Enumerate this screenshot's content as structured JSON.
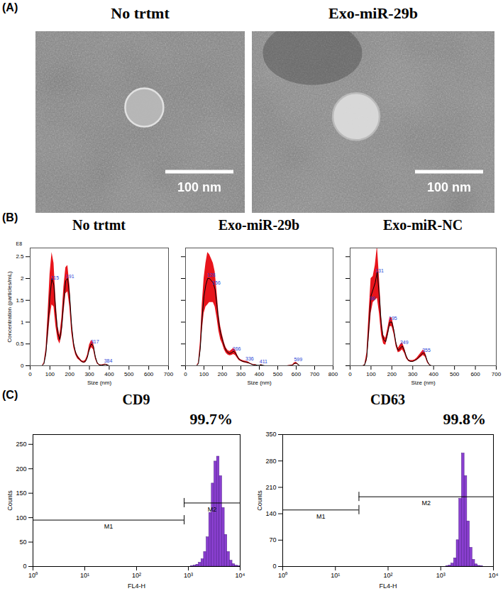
{
  "panel_labels": [
    "(A)",
    "(B)",
    "(C)"
  ],
  "panel_a": {
    "images": [
      {
        "title": "No trtmt",
        "scale_bar": "100 nm"
      },
      {
        "title": "Exo-miR-29b",
        "scale_bar": "100 nm"
      }
    ]
  },
  "chart_data": [
    {
      "type": "line",
      "title": "No trtmt",
      "xlabel": "Size (nm)",
      "ylabel": "Concentration (particles/mL)",
      "y_multiplier": "E8",
      "color": "#000000",
      "x": [
        0,
        50,
        60,
        70,
        80,
        90,
        100,
        110,
        120,
        130,
        140,
        150,
        160,
        170,
        180,
        190,
        200,
        210,
        220,
        230,
        240,
        250,
        260,
        270,
        280,
        290,
        300,
        310,
        320,
        330,
        340,
        350,
        360,
        370,
        380,
        390,
        400,
        450,
        500,
        600,
        700
      ],
      "values": [
        0,
        0,
        0,
        0.05,
        0.3,
        0.9,
        1.6,
        2.0,
        1.85,
        1.2,
        0.75,
        0.6,
        0.9,
        1.5,
        1.95,
        2.0,
        1.6,
        0.9,
        0.5,
        0.3,
        0.2,
        0.15,
        0.1,
        0.08,
        0.1,
        0.2,
        0.4,
        0.5,
        0.45,
        0.2,
        0.06,
        0.02,
        0.01,
        0.02,
        0.03,
        0.02,
        0,
        0,
        0,
        0,
        0
      ],
      "error": [
        0,
        0,
        0,
        0.02,
        0.1,
        0.3,
        0.5,
        0.6,
        0.5,
        0.3,
        0.15,
        0.1,
        0.2,
        0.3,
        0.3,
        0.3,
        0.25,
        0.15,
        0.08,
        0.05,
        0.04,
        0.03,
        0.02,
        0.02,
        0.03,
        0.05,
        0.08,
        0.08,
        0.08,
        0.05,
        0.02,
        0.01,
        0.01,
        0.01,
        0.01,
        0.01,
        0,
        0,
        0,
        0,
        0
      ],
      "peaks": [
        115,
        191,
        317,
        384
      ],
      "xlim": [
        0,
        700
      ],
      "xticks": [
        0,
        100,
        200,
        300,
        400,
        500,
        600,
        700
      ],
      "ylim": [
        0,
        2.7
      ],
      "yticks": [
        0,
        0.5,
        1,
        1.5,
        2,
        2.5
      ]
    },
    {
      "type": "line",
      "title": "Exo-miR-29b",
      "xlabel": "Size (nm)",
      "color": "#000000",
      "tick_labels": "x",
      "x": [
        0,
        50,
        60,
        70,
        80,
        90,
        100,
        110,
        120,
        130,
        140,
        150,
        160,
        170,
        180,
        190,
        200,
        210,
        220,
        230,
        240,
        250,
        260,
        270,
        280,
        290,
        300,
        310,
        320,
        330,
        340,
        350,
        360,
        370,
        380,
        390,
        400,
        410,
        420,
        430,
        440,
        450,
        500,
        550,
        580,
        590,
        600,
        610,
        620,
        650,
        700,
        800
      ],
      "values": [
        0,
        0,
        0,
        0.05,
        0.4,
        1.1,
        1.6,
        1.85,
        2.0,
        2.0,
        1.95,
        1.9,
        1.75,
        1.4,
        1.0,
        0.75,
        0.6,
        0.45,
        0.35,
        0.3,
        0.28,
        0.3,
        0.33,
        0.3,
        0.22,
        0.15,
        0.12,
        0.1,
        0.09,
        0.08,
        0.07,
        0.05,
        0.03,
        0.02,
        0.02,
        0.01,
        0.01,
        0.02,
        0.01,
        0,
        0,
        0,
        0,
        0,
        0.01,
        0.05,
        0.06,
        0.03,
        0,
        0,
        0,
        0
      ],
      "error": [
        0,
        0,
        0,
        0.02,
        0.15,
        0.3,
        0.4,
        0.5,
        0.6,
        0.55,
        0.5,
        0.45,
        0.4,
        0.3,
        0.2,
        0.15,
        0.1,
        0.08,
        0.06,
        0.05,
        0.05,
        0.06,
        0.07,
        0.06,
        0.04,
        0.03,
        0.02,
        0.02,
        0.02,
        0.02,
        0.02,
        0.01,
        0.01,
        0.01,
        0.01,
        0,
        0,
        0.01,
        0,
        0,
        0,
        0,
        0,
        0,
        0.01,
        0.02,
        0.02,
        0.01,
        0,
        0,
        0,
        0
      ],
      "peaks": [
        128,
        156,
        266,
        336,
        411,
        599
      ],
      "xlim": [
        0,
        800
      ],
      "xticks": [
        0,
        100,
        200,
        300,
        400,
        500,
        600,
        700,
        800
      ],
      "ylim": [
        0,
        2.7
      ],
      "yticks": [
        0,
        0.5,
        1,
        1.5,
        2,
        2.5
      ]
    },
    {
      "type": "line",
      "title": "Exo-miR-NC",
      "xlabel": "Size (nm)",
      "color": "#000000",
      "tick_labels": "x",
      "x": [
        0,
        50,
        60,
        70,
        80,
        90,
        100,
        110,
        120,
        130,
        140,
        150,
        160,
        170,
        180,
        190,
        200,
        210,
        220,
        230,
        240,
        250,
        260,
        270,
        280,
        290,
        300,
        310,
        320,
        330,
        340,
        350,
        360,
        370,
        380,
        390,
        400,
        450,
        500,
        600,
        700
      ],
      "values": [
        0,
        0,
        0,
        0.02,
        0.2,
        0.9,
        1.6,
        1.75,
        1.9,
        2.15,
        1.6,
        0.9,
        0.6,
        0.55,
        0.75,
        1.0,
        1.0,
        0.8,
        0.5,
        0.35,
        0.4,
        0.45,
        0.35,
        0.2,
        0.12,
        0.1,
        0.1,
        0.12,
        0.15,
        0.2,
        0.25,
        0.3,
        0.25,
        0.1,
        0.02,
        0,
        0,
        0,
        0,
        0,
        0
      ],
      "error": [
        0,
        0,
        0,
        0.01,
        0.1,
        0.3,
        0.4,
        0.3,
        0.4,
        0.6,
        0.4,
        0.2,
        0.1,
        0.08,
        0.1,
        0.1,
        0.1,
        0.08,
        0.06,
        0.05,
        0.08,
        0.08,
        0.06,
        0.04,
        0.02,
        0.02,
        0.02,
        0.02,
        0.03,
        0.04,
        0.05,
        0.06,
        0.05,
        0.03,
        0.01,
        0,
        0,
        0,
        0,
        0,
        0
      ],
      "peaks": [
        98,
        131,
        195,
        249,
        355
      ],
      "xlim": [
        0,
        700
      ],
      "xticks": [
        0,
        100,
        200,
        300,
        400,
        500,
        600,
        700
      ],
      "ylim": [
        0,
        2.7
      ],
      "yticks": [
        0,
        0.5,
        1,
        1.5,
        2,
        2.5
      ]
    },
    {
      "type": "histogram",
      "title": "CD9",
      "annotation": "99.7%",
      "xlabel": "FL4-H",
      "ylabel": "Counts",
      "log": "x",
      "color": "#8a3fd0",
      "bins": [
        708,
        794,
        891,
        1000,
        1122,
        1259,
        1413,
        1585,
        1778,
        1995,
        2239,
        2512,
        2818,
        3162,
        3548,
        3981,
        4467,
        5012,
        5623,
        6310,
        7079,
        7943,
        8913,
        10000
      ],
      "counts": [
        0,
        0,
        0,
        0,
        1,
        2,
        4,
        8,
        15,
        30,
        60,
        110,
        170,
        215,
        225,
        185,
        120,
        65,
        30,
        12,
        5,
        2,
        1
      ],
      "gates": [
        {
          "name": "M1",
          "range": [
            1,
            830
          ],
          "y": 95
        },
        {
          "name": "M2",
          "range": [
            830,
            10000
          ],
          "y": 130
        }
      ],
      "xlim": [
        1,
        10000
      ],
      "xticks": [
        {
          "value": 1,
          "label": "10⁰"
        },
        {
          "value": 10,
          "label": "10¹"
        },
        {
          "value": 100,
          "label": "10²"
        },
        {
          "value": 1000,
          "label": "10³"
        },
        {
          "value": 10000,
          "label": "10⁴"
        }
      ],
      "ylim": [
        0,
        270
      ],
      "yticks": [
        0,
        50,
        100,
        150,
        200,
        250
      ]
    },
    {
      "type": "histogram",
      "title": "CD63",
      "annotation": "99.8%",
      "xlabel": "FL4-H",
      "ylabel": "Counts",
      "log": "x",
      "color": "#8a3fd0",
      "bins": [
        708,
        794,
        891,
        1000,
        1122,
        1259,
        1413,
        1585,
        1778,
        1995,
        2239,
        2512,
        2818,
        3162,
        3548,
        3981,
        4467,
        5012,
        5623,
        6310,
        7079,
        7943,
        8913,
        10000
      ],
      "counts": [
        0,
        0,
        0,
        0,
        0,
        1,
        3,
        8,
        22,
        70,
        180,
        300,
        240,
        120,
        50,
        18,
        6,
        2,
        1,
        0,
        0,
        0,
        0
      ],
      "gates": [
        {
          "name": "M1",
          "range": [
            1,
            28
          ],
          "y": 150
        },
        {
          "name": "M2",
          "range": [
            28,
            10000
          ],
          "y": 185
        }
      ],
      "xlim": [
        1,
        10000
      ],
      "xticks": [
        {
          "value": 1,
          "label": "10⁰"
        },
        {
          "value": 10,
          "label": "10¹"
        },
        {
          "value": 100,
          "label": "10²"
        },
        {
          "value": 1000,
          "label": "10³"
        },
        {
          "value": 10000,
          "label": "10⁴"
        }
      ],
      "ylim": [
        0,
        350
      ],
      "yticks": [
        0,
        70,
        140,
        210,
        280,
        350
      ]
    }
  ]
}
